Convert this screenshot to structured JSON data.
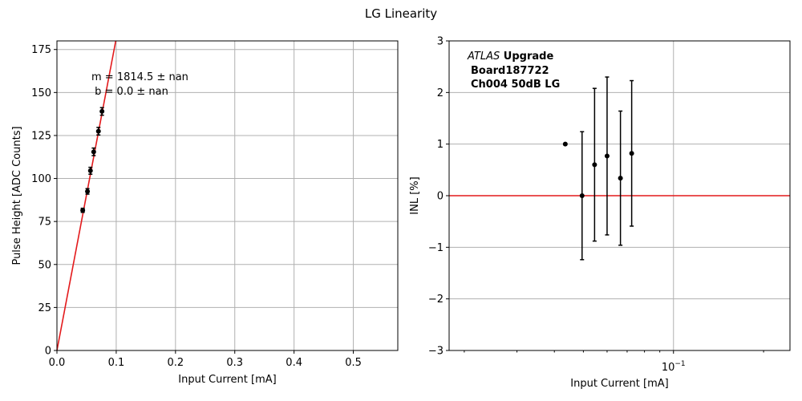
{
  "figure": {
    "title": "LG Linearity"
  },
  "chart_data": [
    {
      "type": "scatter",
      "panel": "left",
      "xlabel": "Input Current [mA]",
      "ylabel": "Pulse Height [ADC Counts]",
      "xlim": [
        0.0,
        0.575
      ],
      "ylim": [
        0,
        180
      ],
      "xscale": "linear",
      "grid": true,
      "xticks": [
        0.0,
        0.1,
        0.2,
        0.3,
        0.4,
        0.5
      ],
      "xtick_labels": [
        "0.0",
        "0.1",
        "0.2",
        "0.3",
        "0.4",
        "0.5"
      ],
      "yticks": [
        0,
        25,
        50,
        75,
        100,
        125,
        150,
        175
      ],
      "ytick_labels": [
        "0",
        "25",
        "50",
        "75",
        "100",
        "125",
        "150",
        "175"
      ],
      "points": [
        {
          "x": 0.0435,
          "y": 81.5,
          "yerr": 1.2
        },
        {
          "x": 0.0515,
          "y": 92.5,
          "yerr": 1.6
        },
        {
          "x": 0.0565,
          "y": 104.5,
          "yerr": 2.0
        },
        {
          "x": 0.062,
          "y": 115.5,
          "yerr": 2.2
        },
        {
          "x": 0.07,
          "y": 127.5,
          "yerr": 2.2
        },
        {
          "x": 0.076,
          "y": 139.0,
          "yerr": 2.2
        }
      ],
      "fit_line": {
        "slope": 1814.5,
        "intercept": 0.0,
        "color": "#e31a1c"
      },
      "marker_color": "#000000",
      "annotations": [
        "m = 1814.5 ± nan",
        " b = 0.0 ± nan"
      ]
    },
    {
      "type": "scatter",
      "panel": "right",
      "xlabel": "Input Current [mA]",
      "ylabel": "INL [%]",
      "xscale": "log",
      "xlim": [
        0.0178,
        0.245
      ],
      "ylim": [
        -3,
        3
      ],
      "grid": true,
      "yticks": [
        -3,
        -2,
        -1,
        0,
        1,
        2,
        3
      ],
      "ytick_labels": [
        "−3",
        "−2",
        "−1",
        "0",
        "1",
        "2",
        "3"
      ],
      "xtick_major": {
        "value": 0.1,
        "base": "10",
        "exponent": "−1"
      },
      "xtick_minor": [
        0.02,
        0.03,
        0.04,
        0.05,
        0.06,
        0.07,
        0.08,
        0.09,
        0.2
      ],
      "points": [
        {
          "x": 0.0435,
          "y": 1.0,
          "yerr": 0.0
        },
        {
          "x": 0.0495,
          "y": 0.0,
          "yerr": 1.24
        },
        {
          "x": 0.0545,
          "y": 0.6,
          "yerr": 1.48
        },
        {
          "x": 0.06,
          "y": 0.77,
          "yerr": 1.53
        },
        {
          "x": 0.0665,
          "y": 0.34,
          "yerr": 1.3
        },
        {
          "x": 0.0725,
          "y": 0.82,
          "yerr": 1.41
        }
      ],
      "reference_line": {
        "y": 0,
        "color": "#e31a1c"
      },
      "marker_color": "#000000",
      "annotation": {
        "italic": "ATLAS",
        "bold_suffix": " Upgrade",
        "lines": [
          "Board187722",
          "Ch004 50dB LG"
        ]
      }
    }
  ]
}
